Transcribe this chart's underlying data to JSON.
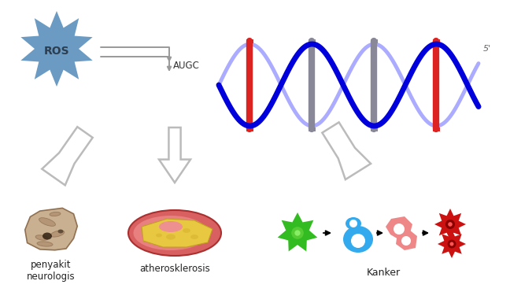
{
  "bg_color": "#ffffff",
  "ros_color": "#6b9bc3",
  "ros_text": "ROS",
  "ros_text_color": "#2c3e50",
  "augc_text": "AUGC",
  "five_prime_text": "5'",
  "label_neuro": "penyakit\nneurologis",
  "label_athero": "atherosklerosis",
  "label_kanker": "Kanker",
  "arrow_edge_color": "#bbbbbb",
  "dna_blue": "#0000dd",
  "dna_blue2": "#6666ff",
  "dna_red": "#dd2222",
  "dna_yellow": "#ffaa00",
  "dna_gray": "#888899"
}
